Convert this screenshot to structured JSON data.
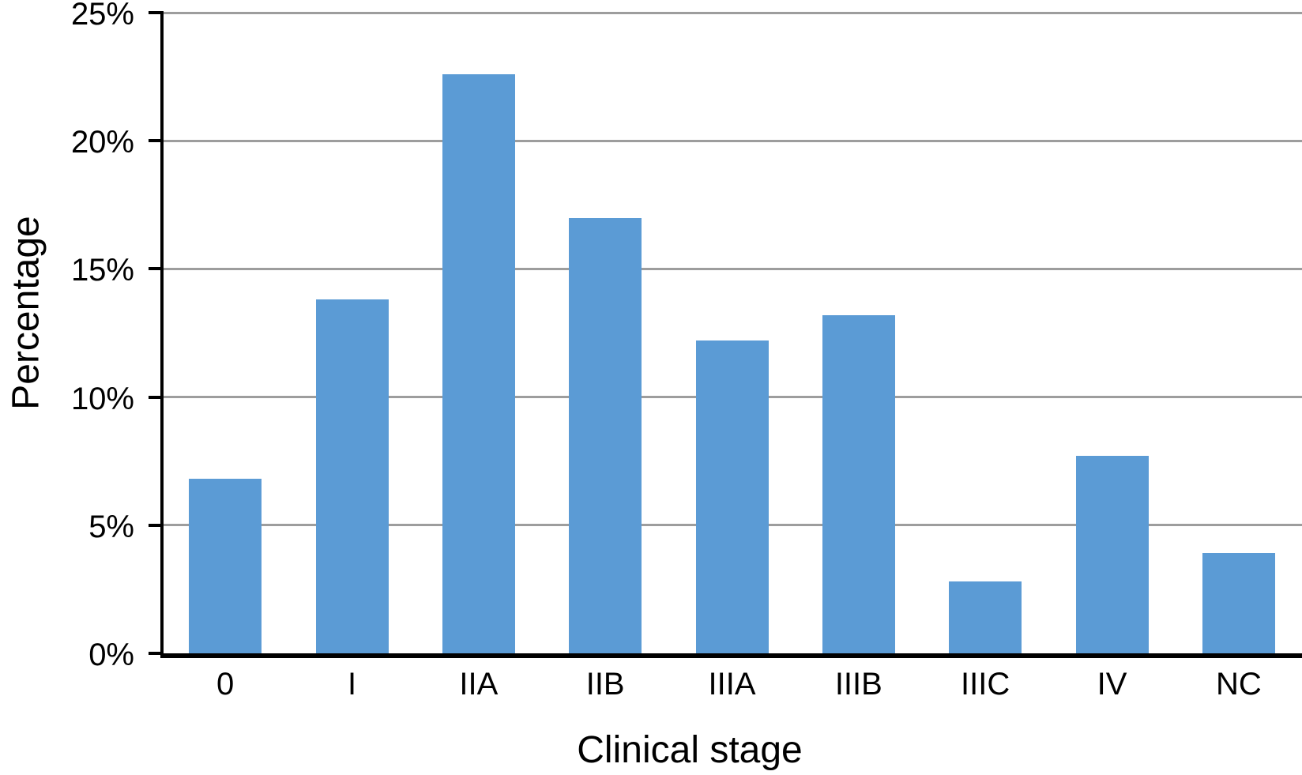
{
  "chart_data": {
    "type": "bar",
    "title": "",
    "xlabel": "Clinical stage",
    "ylabel": "Percentage",
    "categories": [
      "0",
      "I",
      "IIA",
      "IIB",
      "IIIA",
      "IIIB",
      "IIIC",
      "IV",
      "NC"
    ],
    "values": [
      6.8,
      13.8,
      22.6,
      17.0,
      12.2,
      13.2,
      2.8,
      7.7,
      3.9
    ],
    "unit": "%",
    "ylim": [
      0,
      25
    ],
    "ytick_step": 5,
    "ytick_labels": [
      "0%",
      "5%",
      "10%",
      "15%",
      "20%",
      "25%"
    ],
    "grid": "horizontal",
    "legend": "none",
    "colors": {
      "bar": "#5B9BD5",
      "gridline": "#9D9D9D",
      "axis": "#000000",
      "text": "#000000",
      "background": "#FFFFFF"
    }
  }
}
